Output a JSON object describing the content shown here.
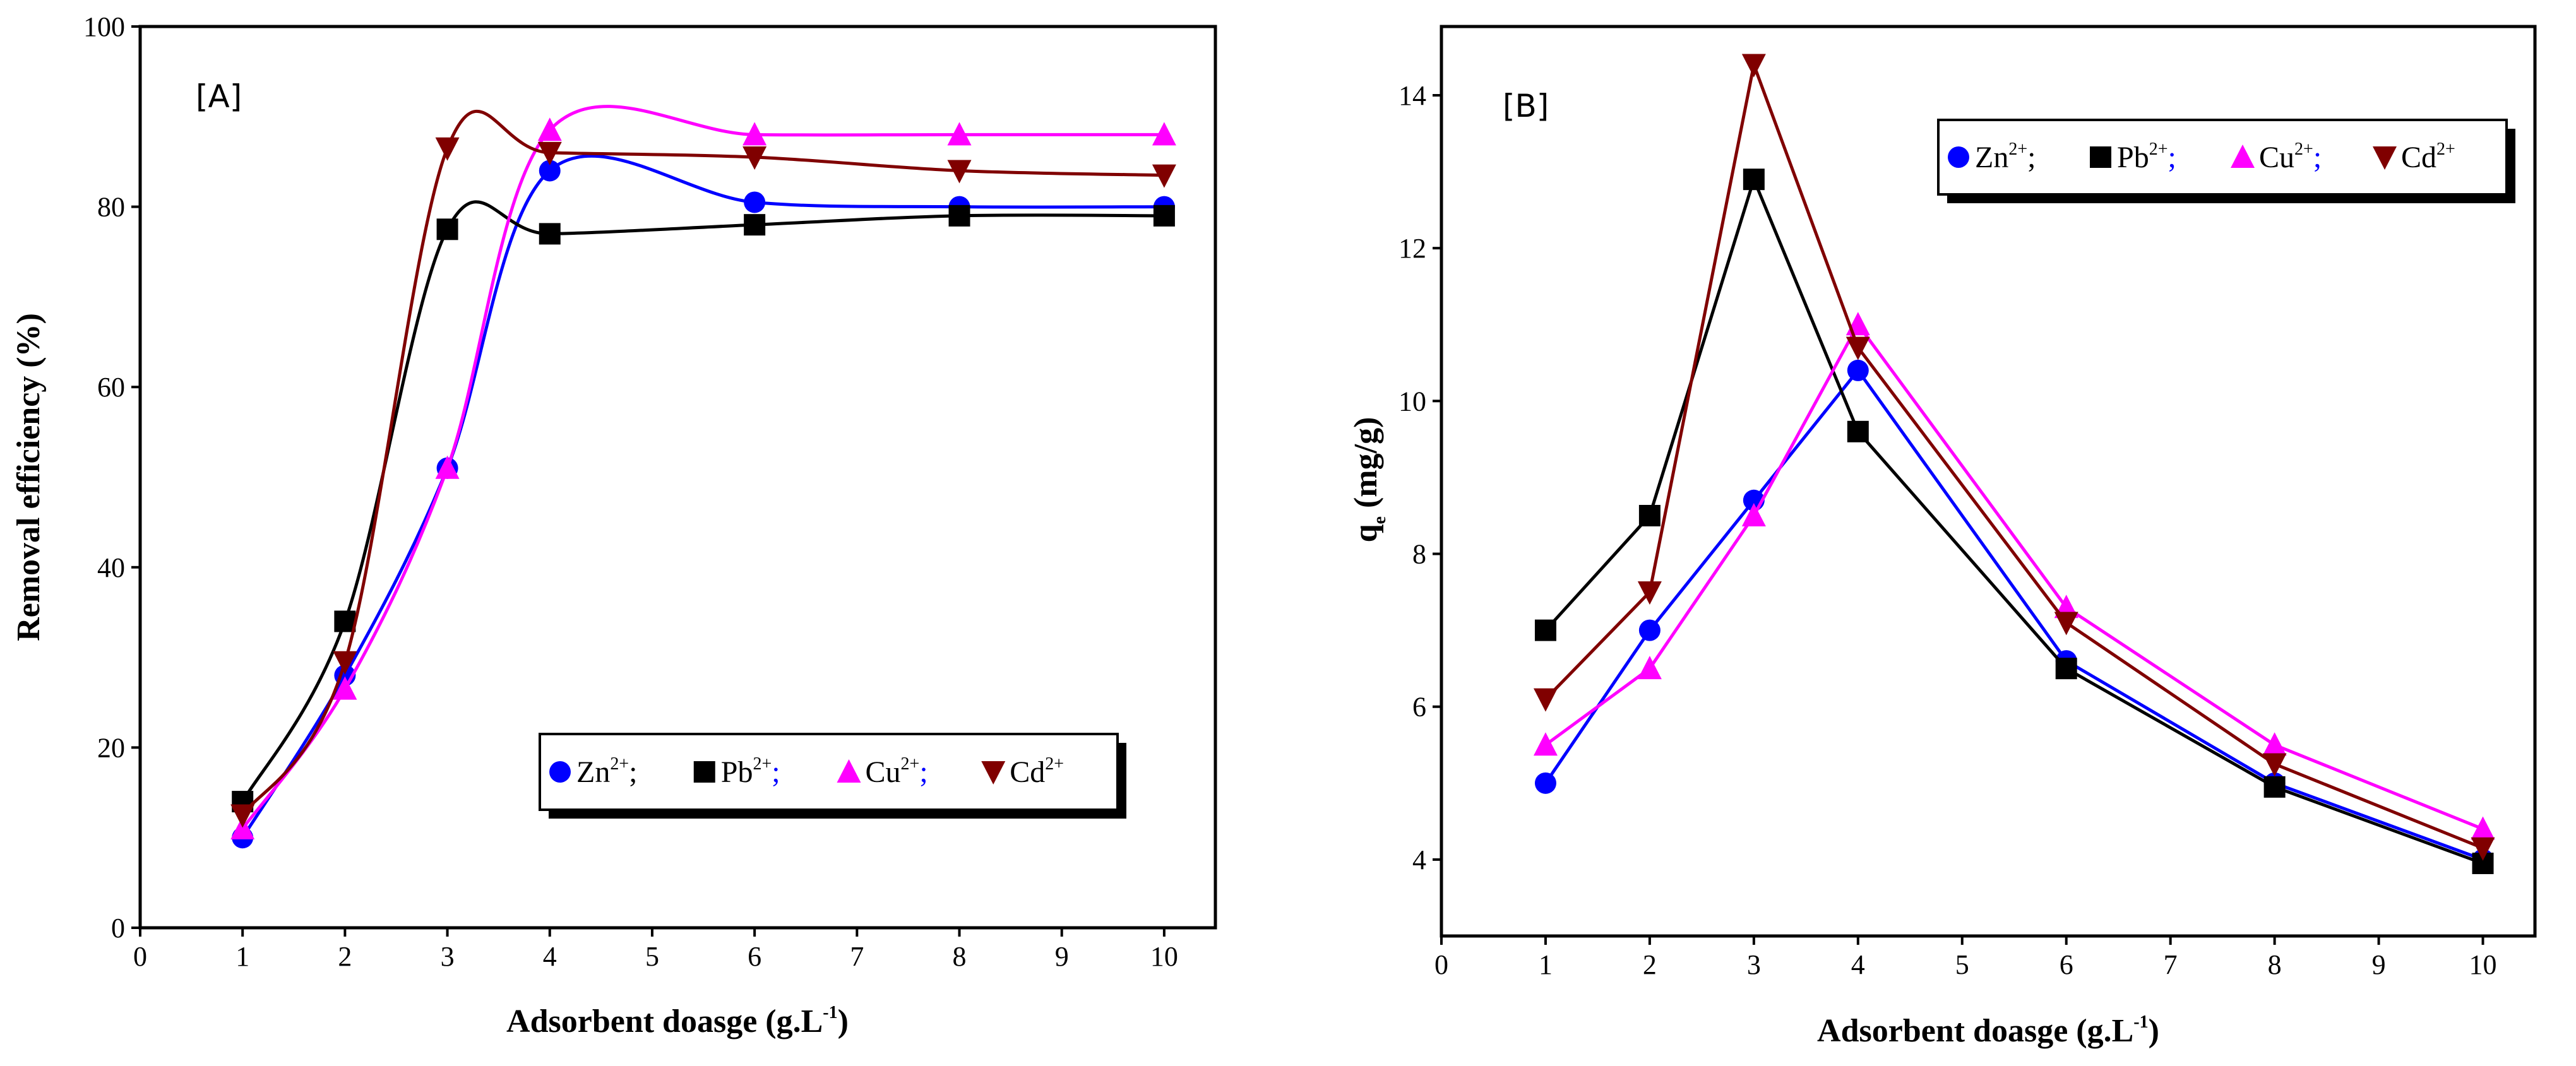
{
  "chart_data": [
    {
      "type": "line",
      "panel_label": "[A]",
      "xlabel": "Adsorbent doasge (g.L",
      "xlabel_sup": "-1",
      "xlabel_end": ")",
      "ylabel": "Removal efficiency (%)",
      "xlim": [
        0,
        10.5
      ],
      "ylim": [
        0,
        100
      ],
      "xticks": [
        0,
        1,
        2,
        3,
        4,
        5,
        6,
        7,
        8,
        9,
        10
      ],
      "yticks": [
        0,
        20,
        40,
        60,
        80,
        100
      ],
      "x": [
        1,
        2,
        3,
        4,
        6,
        8,
        10
      ],
      "legend_position": "lower-right",
      "series": [
        {
          "name": "Zn",
          "ion_charge": "2+",
          "color": "#0000ff",
          "marker": "circle",
          "values": [
            10,
            28,
            51,
            84,
            80.5,
            80,
            80
          ]
        },
        {
          "name": "Pb",
          "ion_charge": "2+",
          "color": "#000000",
          "marker": "square",
          "values": [
            14,
            34,
            77.5,
            77,
            78,
            79,
            79
          ]
        },
        {
          "name": "Cu",
          "ion_charge": "2+",
          "color": "#ff00ff",
          "marker": "triangle-up",
          "values": [
            11,
            26.5,
            51,
            88.5,
            88,
            88,
            88
          ]
        },
        {
          "name": "Cd",
          "ion_charge": "2+",
          "color": "#800000",
          "marker": "triangle-down",
          "values": [
            12.5,
            29.5,
            86.5,
            86,
            85.5,
            84,
            83.5
          ]
        }
      ]
    },
    {
      "type": "line",
      "panel_label": "[B]",
      "xlabel": "Adsorbent doasge (g.L",
      "xlabel_sup": "-1",
      "xlabel_end": ")",
      "ylabel": "q",
      "ylabel_sub": "e",
      "ylabel_end": " (mg/g)",
      "xlim": [
        0,
        10.5
      ],
      "ylim": [
        3,
        14.9
      ],
      "xticks": [
        0,
        1,
        2,
        3,
        4,
        5,
        6,
        7,
        8,
        9,
        10
      ],
      "yticks": [
        4,
        6,
        8,
        10,
        12,
        14
      ],
      "x": [
        1,
        2,
        3,
        4,
        6,
        8,
        10
      ],
      "legend_position": "upper-right",
      "series": [
        {
          "name": "Zn",
          "ion_charge": "2+",
          "color": "#0000ff",
          "marker": "circle",
          "values": [
            5.0,
            7.0,
            8.7,
            10.4,
            6.6,
            5.0,
            4.0
          ]
        },
        {
          "name": "Pb",
          "ion_charge": "2+",
          "color": "#000000",
          "marker": "square",
          "values": [
            7.0,
            8.5,
            12.9,
            9.6,
            6.5,
            4.95,
            3.95
          ]
        },
        {
          "name": "Cu",
          "ion_charge": "2+",
          "color": "#ff00ff",
          "marker": "triangle-up",
          "values": [
            5.5,
            6.5,
            8.5,
            11.0,
            7.3,
            5.5,
            4.4
          ]
        },
        {
          "name": "Cd",
          "ion_charge": "2+",
          "color": "#800000",
          "marker": "triangle-down",
          "values": [
            6.1,
            7.5,
            14.4,
            10.7,
            7.1,
            5.25,
            4.15
          ]
        }
      ]
    }
  ]
}
